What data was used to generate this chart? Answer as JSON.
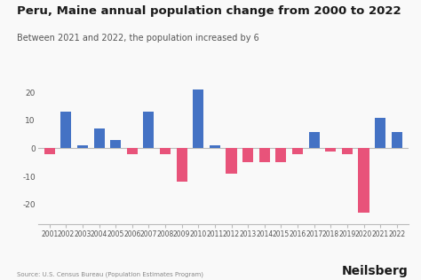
{
  "title": "Peru, Maine annual population change from 2000 to 2022",
  "subtitle": "Between 2021 and 2022, the population increased by 6",
  "source": "Source: U.S. Census Bureau (Population Estimates Program)",
  "branding": "Neilsberg",
  "years": [
    2001,
    2002,
    2003,
    2004,
    2005,
    2006,
    2007,
    2008,
    2009,
    2010,
    2011,
    2012,
    2013,
    2014,
    2015,
    2016,
    2017,
    2018,
    2019,
    2020,
    2021,
    2022
  ],
  "values": [
    -2,
    13,
    1,
    7,
    3,
    -2,
    13,
    -2,
    -12,
    21,
    1,
    -9,
    -5,
    -5,
    -5,
    -2,
    6,
    -1,
    -2,
    -23,
    11,
    6
  ],
  "bar_color_pos": "#4472C4",
  "bar_color_neg": "#E8537A",
  "bg_color": "#F9F9F9",
  "title_fontsize": 9.5,
  "subtitle_fontsize": 7,
  "source_fontsize": 5,
  "branding_fontsize": 10,
  "tick_fontsize": 5.5,
  "ytick_fontsize": 6.5,
  "ylabel_ticks": [
    -20,
    -10,
    0,
    10,
    20
  ],
  "ylim": [
    -27,
    25
  ],
  "bar_width": 0.65
}
